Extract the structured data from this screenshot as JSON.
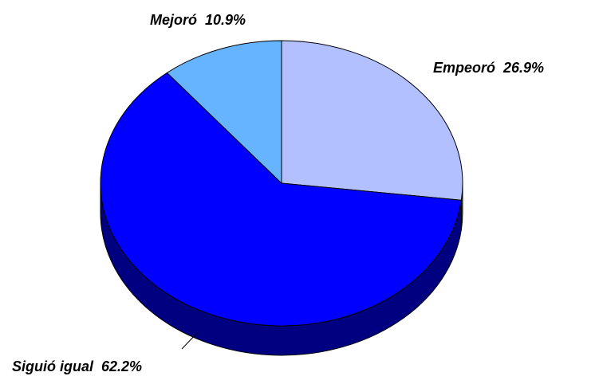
{
  "chart_data": {
    "type": "pie",
    "categories": [
      "Empeoró",
      "Siguió igual",
      "Mejoró"
    ],
    "values": [
      26.9,
      62.2,
      10.9
    ],
    "value_labels": [
      "26.9%",
      "62.2%",
      "10.9%"
    ],
    "colors": [
      "#b3c0ff",
      "#0000ff",
      "#66b3ff"
    ]
  }
}
